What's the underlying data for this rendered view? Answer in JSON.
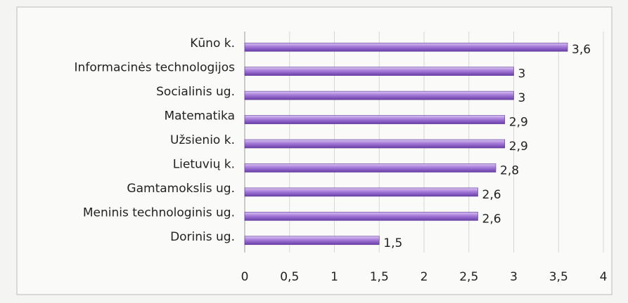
{
  "chart_data": {
    "type": "bar",
    "orientation": "horizontal",
    "categories": [
      "Kūno k.",
      "Informacinės technologijos",
      "Socialinis ug.",
      "Matematika",
      "Užsienio k.",
      "Lietuvių k.",
      "Gamtamokslis ug.",
      "Meninis technologinis ug.",
      "Dorinis ug."
    ],
    "values": [
      3.6,
      3,
      3,
      2.9,
      2.9,
      2.8,
      2.6,
      2.6,
      1.5
    ],
    "value_labels": [
      "3,6",
      "3",
      "3",
      "2,9",
      "2,9",
      "2,8",
      "2,6",
      "2,6",
      "1,5"
    ],
    "color": "#9c72d2",
    "xlim": [
      0,
      4
    ],
    "xticks": [
      0,
      {
        "value": 0.5,
        "label": "0,5"
      },
      1,
      {
        "value": 1.5,
        "label": "1,5"
      },
      2,
      {
        "value": 2.5,
        "label": "2,5"
      },
      3,
      {
        "value": 3.5,
        "label": "3,5"
      },
      4
    ],
    "grid": true
  }
}
